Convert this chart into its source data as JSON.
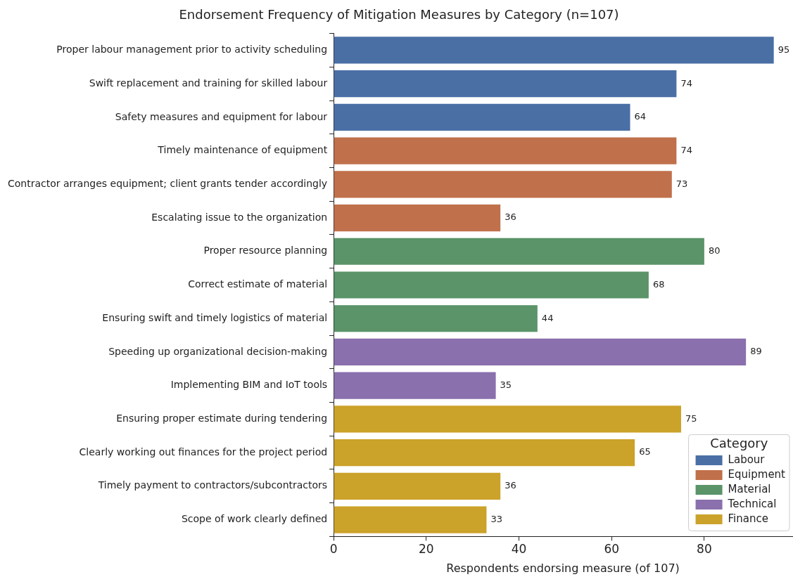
{
  "chart_data": {
    "type": "bar",
    "orientation": "horizontal",
    "title": "Endorsement Frequency of Mitigation Measures by Category (n=107)",
    "xlabel": "Respondents endorsing measure (of 107)",
    "categories": [
      "Proper labour management prior to activity scheduling",
      "Swift replacement and training for skilled labour",
      "Safety measures and equipment for labour",
      "Timely maintenance of equipment",
      "Contractor arranges equipment; client grants tender accordingly",
      "Escalating issue to the organization",
      "Proper resource planning",
      "Correct estimate of material",
      "Ensuring swift and timely logistics of material",
      "Speeding up organizational decision-making",
      "Implementing BIM and IoT tools",
      "Ensuring proper estimate during tendering",
      "Clearly working out finances for the project period",
      "Timely payment to contractors/subcontractors",
      "Scope of work clearly defined"
    ],
    "series": [
      {
        "name": "Labour",
        "color": "#4a6fa5",
        "values": [
          95,
          74,
          64,
          null,
          null,
          null,
          null,
          null,
          null,
          null,
          null,
          null,
          null,
          null,
          null
        ]
      },
      {
        "name": "Equipment",
        "color": "#c0704b",
        "values": [
          null,
          null,
          null,
          74,
          73,
          36,
          null,
          null,
          null,
          null,
          null,
          null,
          null,
          null,
          null
        ]
      },
      {
        "name": "Material",
        "color": "#5a9468",
        "values": [
          null,
          null,
          null,
          null,
          null,
          null,
          80,
          68,
          44,
          null,
          null,
          null,
          null,
          null,
          null
        ]
      },
      {
        "name": "Technical",
        "color": "#8a70ad",
        "values": [
          null,
          null,
          null,
          null,
          null,
          null,
          null,
          null,
          null,
          89,
          35,
          null,
          null,
          null,
          null
        ]
      },
      {
        "name": "Finance",
        "color": "#cba22a",
        "values": [
          null,
          null,
          null,
          null,
          null,
          null,
          null,
          null,
          null,
          null,
          null,
          75,
          65,
          36,
          33
        ]
      }
    ],
    "xlim": [
      0,
      99
    ],
    "xticks": [
      0,
      20,
      40,
      60,
      80
    ],
    "data_labels": true,
    "grid": false,
    "legend": "bottom right",
    "legend_title": "Category"
  }
}
